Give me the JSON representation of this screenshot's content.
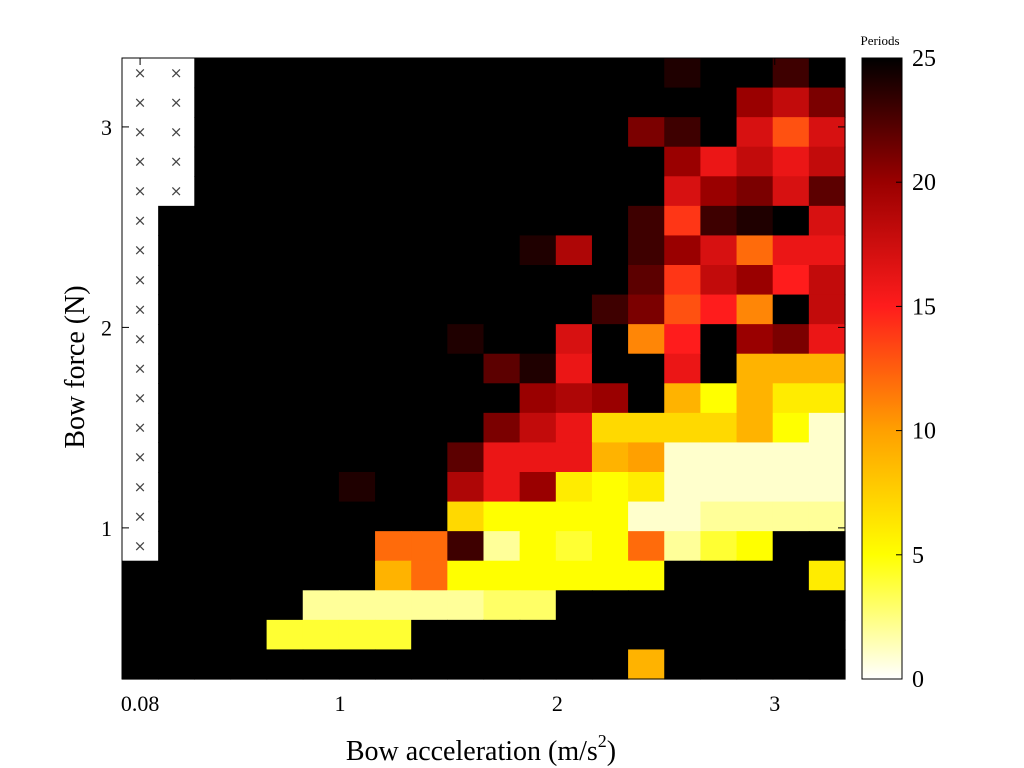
{
  "chart_data": {
    "type": "heatmap",
    "xlabel": "Bow acceleration (m/s",
    "xlabel_superscript": "2",
    "xlabel_suffix": ")",
    "ylabel": "Bow force (N)",
    "colorbar_title": "Periods",
    "colormap": "hot (reversed): 0 = white, 5 = yellow, 10 = orange, 15 = red, 20 = dark red, 25 = black",
    "x_ticks": [
      "0.08",
      "1",
      "2",
      "3"
    ],
    "y_ticks": [
      "1",
      "2",
      "3"
    ],
    "colorbar_ticks": [
      "0",
      "5",
      "10",
      "15",
      "20",
      "25"
    ],
    "clim": [
      0,
      25
    ],
    "x_centers": [
      0.08,
      0.25,
      0.41,
      0.58,
      0.74,
      0.91,
      1.07,
      1.24,
      1.41,
      1.57,
      1.74,
      1.9,
      2.07,
      2.24,
      2.4,
      2.57,
      2.74,
      2.9,
      3.07,
      3.24
    ],
    "y_centers": [
      3.27,
      3.12,
      2.98,
      2.83,
      2.68,
      2.53,
      2.39,
      2.24,
      2.09,
      1.94,
      1.8,
      1.65,
      1.5,
      1.36,
      1.21,
      1.06,
      0.91,
      0.76,
      0.62,
      0.47,
      0.32
    ],
    "no_data_marker": "×",
    "values": [
      [
        null,
        null,
        25,
        25,
        25,
        25,
        25,
        25,
        25,
        25,
        25,
        25,
        25,
        25,
        25,
        24,
        25,
        25,
        23,
        25
      ],
      [
        null,
        null,
        25,
        25,
        25,
        25,
        25,
        25,
        25,
        25,
        25,
        25,
        25,
        25,
        25,
        25,
        25,
        20,
        18,
        21
      ],
      [
        null,
        null,
        25,
        25,
        25,
        25,
        25,
        25,
        25,
        25,
        25,
        25,
        25,
        25,
        21,
        23,
        25,
        17,
        13,
        17
      ],
      [
        null,
        null,
        25,
        25,
        25,
        25,
        25,
        25,
        25,
        25,
        25,
        25,
        25,
        25,
        25,
        20,
        16,
        18,
        16,
        18
      ],
      [
        null,
        null,
        25,
        25,
        25,
        25,
        25,
        25,
        25,
        25,
        25,
        25,
        25,
        25,
        25,
        17,
        20,
        21,
        17,
        22
      ],
      [
        null,
        25,
        25,
        25,
        25,
        25,
        25,
        25,
        25,
        25,
        25,
        25,
        25,
        25,
        23,
        14,
        23,
        24,
        25,
        17
      ],
      [
        null,
        25,
        25,
        25,
        25,
        25,
        25,
        25,
        25,
        25,
        25,
        24,
        19,
        25,
        23,
        20,
        17,
        12,
        16,
        16
      ],
      [
        null,
        25,
        25,
        25,
        25,
        25,
        25,
        25,
        25,
        25,
        25,
        25,
        25,
        25,
        22,
        14,
        18,
        20,
        15,
        18
      ],
      [
        null,
        25,
        25,
        25,
        25,
        25,
        25,
        25,
        25,
        25,
        25,
        25,
        25,
        23,
        21,
        13,
        15,
        11,
        25,
        18
      ],
      [
        null,
        25,
        25,
        25,
        25,
        25,
        25,
        25,
        25,
        24,
        25,
        25,
        17,
        25,
        11,
        15,
        25,
        20,
        21,
        16
      ],
      [
        null,
        25,
        25,
        25,
        25,
        25,
        25,
        25,
        25,
        25,
        22,
        24,
        16,
        25,
        25,
        16,
        25,
        9,
        9,
        9
      ],
      [
        null,
        25,
        25,
        25,
        25,
        25,
        25,
        25,
        25,
        25,
        25,
        20,
        19,
        20,
        25,
        9,
        5,
        9,
        6,
        6
      ],
      [
        null,
        25,
        25,
        25,
        25,
        25,
        25,
        25,
        25,
        25,
        21,
        18,
        16,
        7,
        7,
        7,
        7,
        9,
        5,
        1
      ],
      [
        null,
        25,
        25,
        25,
        25,
        25,
        25,
        25,
        25,
        22,
        16,
        16,
        16,
        9,
        10,
        1,
        1,
        1,
        1,
        1
      ],
      [
        null,
        25,
        25,
        25,
        25,
        25,
        24,
        25,
        25,
        19,
        16,
        20,
        6,
        5,
        6,
        1,
        1,
        1,
        1,
        1
      ],
      [
        null,
        25,
        25,
        25,
        25,
        25,
        25,
        25,
        25,
        7,
        5,
        5,
        5,
        5,
        1,
        1,
        2,
        2,
        2,
        2
      ],
      [
        null,
        25,
        25,
        25,
        25,
        25,
        25,
        12,
        12,
        23,
        2,
        5,
        4,
        5,
        12,
        2,
        4,
        5,
        25,
        25
      ],
      [
        25,
        25,
        25,
        25,
        25,
        25,
        25,
        9,
        12,
        5,
        5,
        5,
        5,
        5,
        5,
        25,
        25,
        25,
        25,
        6
      ],
      [
        25,
        25,
        25,
        25,
        25,
        2,
        2,
        2,
        2,
        2,
        3,
        3,
        25,
        25,
        25,
        25,
        25,
        25,
        25,
        25
      ],
      [
        25,
        25,
        25,
        25,
        4,
        4,
        4,
        4,
        25,
        25,
        25,
        25,
        25,
        25,
        25,
        25,
        25,
        25,
        25,
        25
      ],
      [
        25,
        25,
        25,
        25,
        25,
        25,
        25,
        25,
        25,
        25,
        25,
        25,
        25,
        25,
        9,
        25,
        25,
        25,
        25,
        25
      ]
    ]
  }
}
